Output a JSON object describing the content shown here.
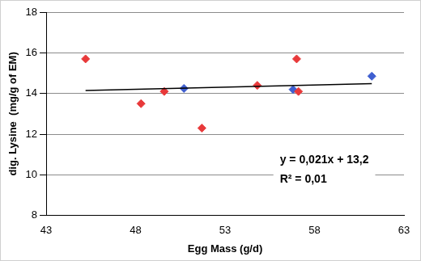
{
  "chart_data": {
    "type": "scatter",
    "x_label": "Egg Mass (g/d)",
    "y_label": "dig. Lysine  (mg/g of EM)",
    "annotations": [
      "y = 0,021x + 13,2",
      "R² = 0,01"
    ],
    "series": [
      {
        "color": "#e8393a",
        "marker": "diamond",
        "x": [
          45.2,
          48.3,
          49.6,
          51.7,
          54.8,
          57.0,
          57.1
        ],
        "values": [
          15.7,
          13.5,
          14.1,
          12.3,
          14.4,
          15.7,
          14.1
        ]
      },
      {
        "color": "#3f5fd0",
        "marker": "diamond",
        "x": [
          50.7,
          56.8,
          61.2
        ],
        "values": [
          14.25,
          14.2,
          14.85
        ]
      },
      {
        "type": "line",
        "color": "#000000",
        "marker": "none",
        "line_style": "solid",
        "x": [
          45.2,
          61.2
        ],
        "values": [
          14.15,
          14.49
        ]
      }
    ],
    "xlim": [
      43,
      63
    ],
    "xticks": [
      43,
      48,
      53,
      58,
      63
    ],
    "ylim": [
      8,
      18
    ],
    "yticks": [
      8,
      10,
      12,
      14,
      16,
      18
    ],
    "grid": "y"
  }
}
